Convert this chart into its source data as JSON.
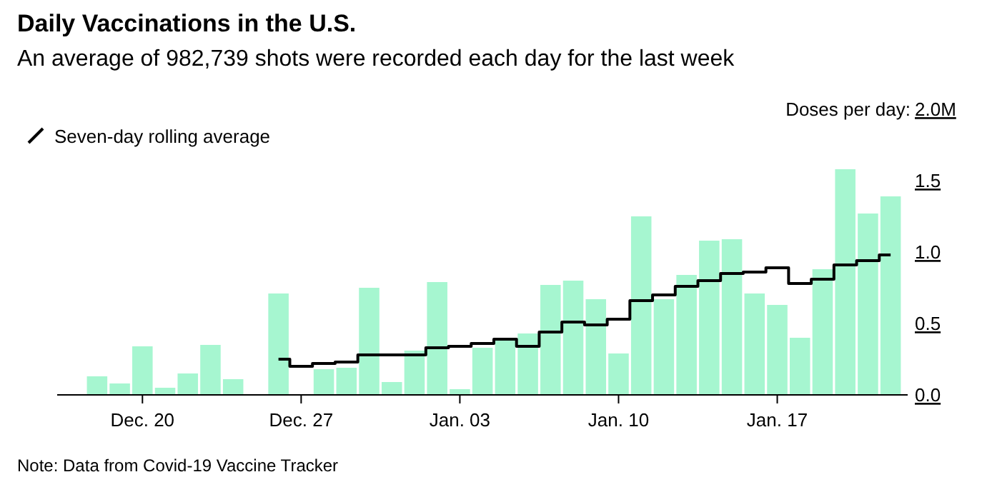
{
  "chart_data": {
    "type": "bar",
    "title": "Daily Vaccinations in the U.S.",
    "subtitle": "An average of 982,739 shots were recorded each day for the last week",
    "ylabel": "Doses per day:",
    "categories": [
      null,
      null,
      "Dec. 20",
      null,
      null,
      null,
      null,
      null,
      null,
      "Dec. 27",
      null,
      null,
      null,
      null,
      null,
      null,
      "Jan. 03",
      null,
      null,
      null,
      null,
      null,
      null,
      "Jan. 10",
      null,
      null,
      null,
      null,
      null,
      null,
      "Jan. 17",
      null,
      null,
      null,
      null,
      null
    ],
    "series": [
      {
        "color": "#a6f6d0",
        "values": [
          0.13,
          0.08,
          0.34,
          0.05,
          0.15,
          0.35,
          0.11,
          null,
          0.71,
          null,
          0.18,
          0.19,
          0.75,
          0.09,
          0.31,
          0.79,
          0.04,
          0.33,
          0.38,
          0.43,
          0.77,
          0.8,
          0.67,
          0.29,
          1.25,
          0.67,
          0.84,
          1.08,
          1.09,
          0.71,
          0.63,
          0.4,
          0.88,
          1.58,
          1.27,
          1.39
        ]
      },
      {
        "type": "step",
        "name": "Seven-day rolling average",
        "color": "#000000",
        "values": [
          null,
          null,
          null,
          null,
          null,
          null,
          null,
          null,
          0.25,
          0.2,
          0.22,
          0.23,
          0.28,
          0.28,
          0.28,
          0.33,
          0.34,
          0.36,
          0.39,
          0.34,
          0.44,
          0.51,
          0.49,
          0.53,
          0.66,
          0.7,
          0.76,
          0.8,
          0.85,
          0.86,
          0.89,
          0.78,
          0.81,
          0.91,
          0.94,
          0.98
        ]
      }
    ],
    "ylim": [
      0,
      2
    ],
    "yticks": [
      {
        "value": 0,
        "label": "0.0"
      },
      {
        "value": 0.5,
        "label": "0.5"
      },
      {
        "value": 1,
        "label": "1.0"
      },
      {
        "value": 1.5,
        "label": "1.5"
      },
      {
        "value": 2,
        "label": "2.0M"
      }
    ],
    "legend": "top left",
    "grid": false,
    "annotations": [
      "Note: Data from Covid-19 Vaccine Tracker"
    ]
  }
}
